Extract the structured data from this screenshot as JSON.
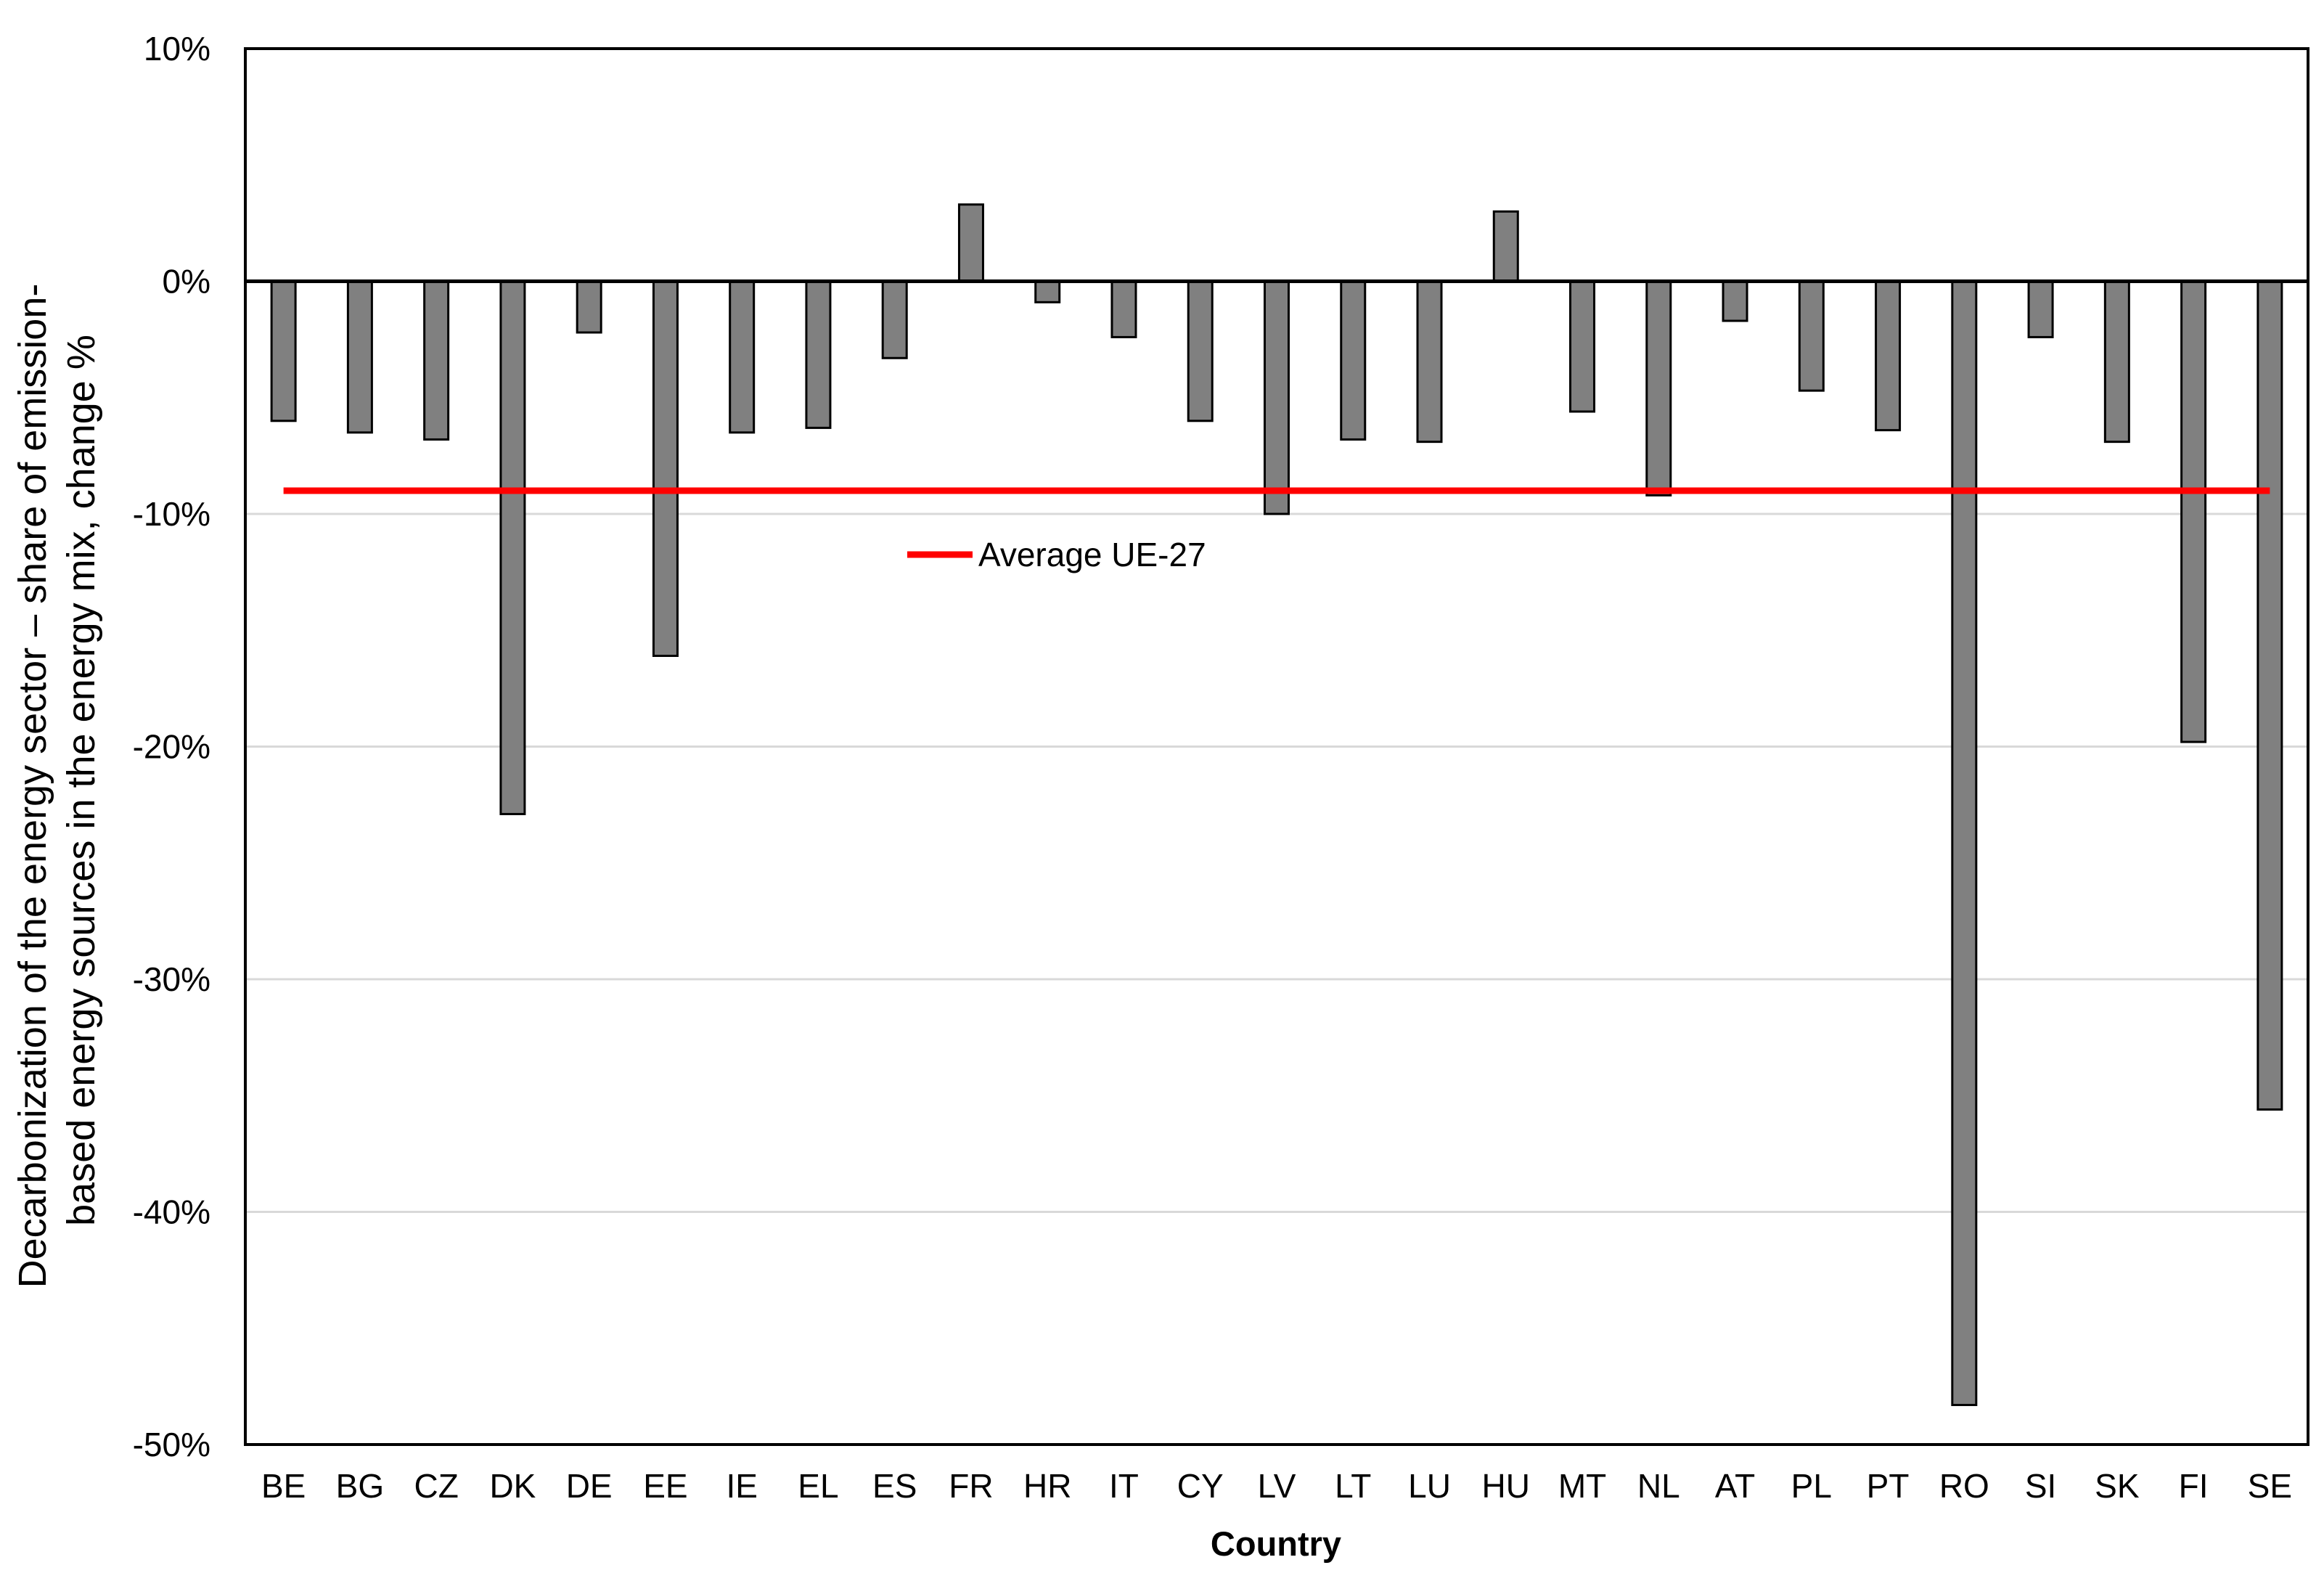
{
  "chart_data": {
    "type": "bar",
    "xlabel": "Country",
    "ylabel_lines": [
      "Decarbonization of the energy sector – share of emission-",
      "based energy sources in the energy mix, change %"
    ],
    "yticks": [
      "10%",
      "0%",
      "-10%",
      "-20%",
      "-30%",
      "-40%",
      "-50%"
    ],
    "ytick_values": [
      10,
      0,
      -10,
      -20,
      -30,
      -40,
      -50
    ],
    "ylim": [
      -50,
      10
    ],
    "grid": true,
    "categories": [
      "BE",
      "BG",
      "CZ",
      "DK",
      "DE",
      "EE",
      "IE",
      "EL",
      "ES",
      "FR",
      "HR",
      "IT",
      "CY",
      "LV",
      "LT",
      "LU",
      "HU",
      "MT",
      "NL",
      "AT",
      "PL",
      "PT",
      "RO",
      "SI",
      "SK",
      "FI",
      "SE"
    ],
    "series": [
      {
        "values": [
          -6.0,
          -6.5,
          -6.8,
          -22.9,
          -2.2,
          -16.1,
          -6.5,
          -6.3,
          -3.3,
          3.3,
          -0.9,
          -2.4,
          -6.0,
          -10.0,
          -6.8,
          -6.9,
          3.0,
          -5.6,
          -9.2,
          -1.7,
          -4.7,
          -6.4,
          -48.3,
          -2.4,
          -6.9,
          -19.8,
          -35.6
        ],
        "color": "#808080"
      }
    ],
    "average_line": {
      "name": "Average UE-27",
      "value": -9.0,
      "color": "#ff0000"
    },
    "legend": {
      "position": "center-left",
      "label": "Average UE-27"
    }
  }
}
